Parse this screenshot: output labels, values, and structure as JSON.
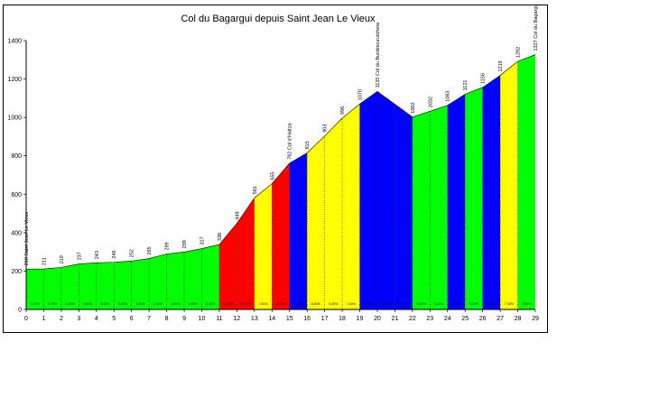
{
  "chart_data": {
    "type": "area",
    "title": "Col du Bagargui depuis Saint Jean Le Vieux",
    "xlabel": "",
    "ylabel": "",
    "xlim": [
      0,
      29
    ],
    "ylim": [
      0,
      1400
    ],
    "x_ticks": [
      0,
      1,
      2,
      3,
      4,
      5,
      6,
      7,
      8,
      9,
      10,
      11,
      12,
      13,
      14,
      15,
      16,
      17,
      18,
      19,
      20,
      21,
      22,
      23,
      24,
      25,
      26,
      27,
      28,
      29
    ],
    "y_ticks": [
      0,
      200,
      400,
      600,
      800,
      1000,
      1200,
      1400
    ],
    "grid": false,
    "legend": "none",
    "x": [
      0,
      1,
      2,
      3,
      4,
      5,
      6,
      7,
      8,
      9,
      10,
      11,
      12,
      13,
      14,
      15,
      16,
      17,
      18,
      19,
      20,
      21,
      22,
      23,
      24,
      25,
      26,
      27,
      28,
      29
    ],
    "altitude": [
      210,
      211,
      219,
      237,
      243,
      246,
      252,
      265,
      289,
      299,
      317,
      338,
      448,
      581,
      655,
      762,
      815,
      903,
      996,
      1070,
      1135,
      1069,
      1002,
      1032,
      1063,
      1121,
      1156,
      1219,
      1292,
      1327
    ],
    "point_labels": [
      {
        "x": 0,
        "text": "210 Saint Jean Le Vieux"
      },
      {
        "x": 1,
        "text": "211"
      },
      {
        "x": 2,
        "text": "219"
      },
      {
        "x": 3,
        "text": "237"
      },
      {
        "x": 4,
        "text": "243"
      },
      {
        "x": 5,
        "text": "246"
      },
      {
        "x": 6,
        "text": "252"
      },
      {
        "x": 7,
        "text": "265"
      },
      {
        "x": 8,
        "text": "289"
      },
      {
        "x": 9,
        "text": "299"
      },
      {
        "x": 10,
        "text": "317"
      },
      {
        "x": 11,
        "text": "338"
      },
      {
        "x": 12,
        "text": "448"
      },
      {
        "x": 13,
        "text": "581"
      },
      {
        "x": 14,
        "text": "655"
      },
      {
        "x": 15,
        "text": "762 Col d'Haltza"
      },
      {
        "x": 16,
        "text": "815"
      },
      {
        "x": 17,
        "text": "903"
      },
      {
        "x": 18,
        "text": "996"
      },
      {
        "x": 19,
        "text": "1070"
      },
      {
        "x": 20,
        "text": "1135 Col du Burdincurutcheta"
      },
      {
        "x": 22,
        "text": "1002"
      },
      {
        "x": 23,
        "text": "1032"
      },
      {
        "x": 24,
        "text": "1063"
      },
      {
        "x": 25,
        "text": "1121"
      },
      {
        "x": 26,
        "text": "1156"
      },
      {
        "x": 27,
        "text": "1219"
      },
      {
        "x": 28,
        "text": "1292"
      },
      {
        "x": 29,
        "text": "1327 Col du Bagargui"
      }
    ],
    "segments": [
      {
        "x0": 0,
        "x1": 1,
        "color": "#00ff00",
        "grade": "0,10%"
      },
      {
        "x0": 1,
        "x1": 2,
        "color": "#00ff00",
        "grade": "0,70%"
      },
      {
        "x0": 2,
        "x1": 3,
        "color": "#00ff00",
        "grade": "1,80%"
      },
      {
        "x0": 3,
        "x1": 4,
        "color": "#00ff00",
        "grade": "0,60%"
      },
      {
        "x0": 4,
        "x1": 5,
        "color": "#00ff00",
        "grade": "0,30%"
      },
      {
        "x0": 5,
        "x1": 6,
        "color": "#00ff00",
        "grade": "0,60%"
      },
      {
        "x0": 6,
        "x1": 7,
        "color": "#00ff00",
        "grade": "1,30%"
      },
      {
        "x0": 7,
        "x1": 8,
        "color": "#00ff00",
        "grade": "2,40%"
      },
      {
        "x0": 8,
        "x1": 9,
        "color": "#00ff00",
        "grade": "1,00%"
      },
      {
        "x0": 9,
        "x1": 10,
        "color": "#00ff00",
        "grade": "1,80%"
      },
      {
        "x0": 10,
        "x1": 11,
        "color": "#00ff00",
        "grade": "2,10%"
      },
      {
        "x0": 11,
        "x1": 12,
        "color": "#ff0000",
        "grade": "11,00%"
      },
      {
        "x0": 12,
        "x1": 13,
        "color": "#ff0000",
        "grade": "13,30%"
      },
      {
        "x0": 13,
        "x1": 14,
        "color": "#ffff00",
        "grade": "7,40%"
      },
      {
        "x0": 14,
        "x1": 15,
        "color": "#ff0000",
        "grade": "10,70%"
      },
      {
        "x0": 15,
        "x1": 16,
        "color": "#0000ff",
        "grade": "5,30%"
      },
      {
        "x0": 16,
        "x1": 17,
        "color": "#ffff00",
        "grade": "8,80%"
      },
      {
        "x0": 17,
        "x1": 18,
        "color": "#ffff00",
        "grade": "9,30%"
      },
      {
        "x0": 18,
        "x1": 19,
        "color": "#ffff00",
        "grade": "7,40%"
      },
      {
        "x0": 19,
        "x1": 20,
        "color": "#0000ff",
        "grade": "6,50%"
      },
      {
        "x0": 20,
        "x1": 21,
        "color": "#0000ff",
        "grade": "-6,60%"
      },
      {
        "x0": 21,
        "x1": 22,
        "color": "#0000ff",
        "grade": "-6,70%"
      },
      {
        "x0": 22,
        "x1": 23,
        "color": "#00ff00",
        "grade": "3,00%"
      },
      {
        "x0": 23,
        "x1": 24,
        "color": "#00ff00",
        "grade": "3,10%"
      },
      {
        "x0": 24,
        "x1": 25,
        "color": "#0000ff",
        "grade": "5,80%"
      },
      {
        "x0": 25,
        "x1": 26,
        "color": "#00ff00",
        "grade": "3,50%"
      },
      {
        "x0": 26,
        "x1": 27,
        "color": "#0000ff",
        "grade": "6,30%"
      },
      {
        "x0": 27,
        "x1": 28,
        "color": "#ffff00",
        "grade": "7,30%"
      },
      {
        "x0": 28,
        "x1": 29,
        "color": "#00ff00",
        "grade": "3,50%"
      }
    ]
  }
}
